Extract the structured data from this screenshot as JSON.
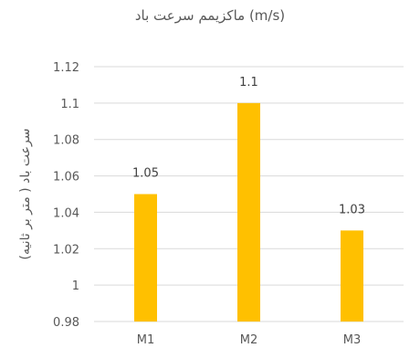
{
  "chart_data": {
    "type": "bar",
    "title": "ماکزیمم سرعت باد (m/s)",
    "xlabel": "",
    "ylabel": "سرعت باد ( متر بر ثانیه)",
    "categories": [
      "M1",
      "M2",
      "M3"
    ],
    "values": [
      1.05,
      1.1,
      1.03
    ],
    "data_labels": [
      "1.05",
      "1.1",
      "1.03"
    ],
    "ylim": [
      0.98,
      1.12
    ],
    "yticks": [
      0.98,
      1,
      1.02,
      1.04,
      1.06,
      1.08,
      1.1,
      1.12
    ],
    "ytick_labels": [
      "0.98",
      "1",
      "1.02",
      "1.04",
      "1.06",
      "1.08",
      "1.1",
      "1.12"
    ],
    "grid": true,
    "bar_color": "#FFC000",
    "gridline_color": "#D9D9D9"
  }
}
